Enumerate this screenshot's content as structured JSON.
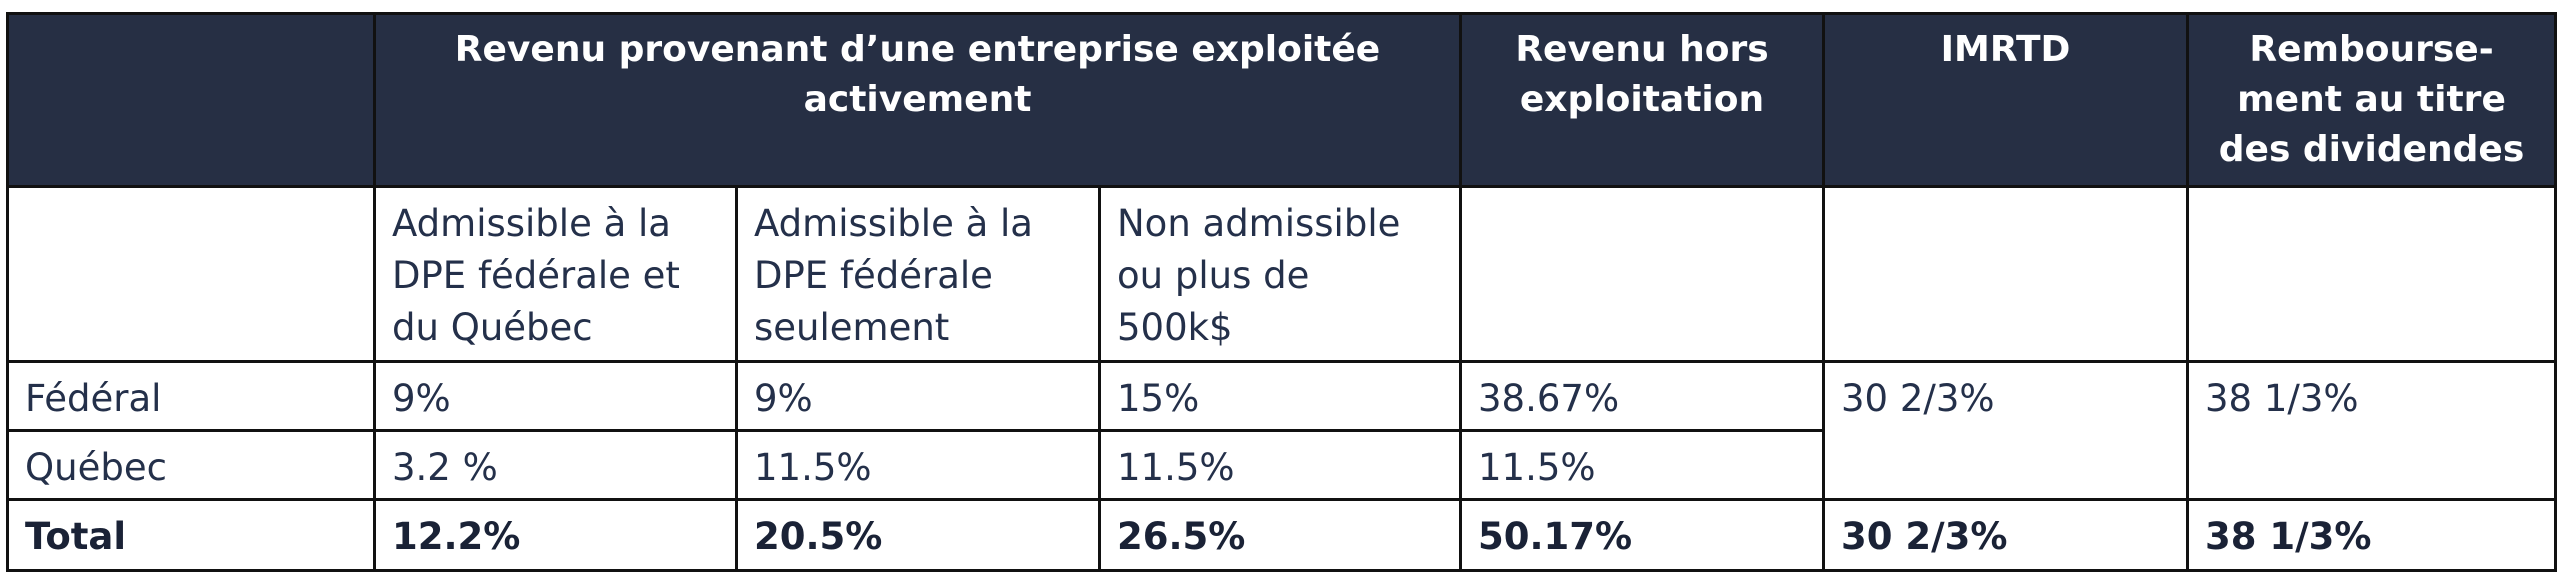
{
  "header": {
    "group_active": "Revenu provenant d’une entreprise exploitée\nactivement",
    "non_exploitation": "Revenu hors\nexploitation",
    "imrtd": "IMRTD",
    "remboursement": "Rembourse-\nment au titre\ndes dividendes"
  },
  "subheaders": [
    "Admissible à la\nDPE fédérale et\ndu Québec",
    "Admissible à la\nDPE fédérale\nseulement",
    "Non admissible\nou plus de\n500k$"
  ],
  "rows": {
    "federal": {
      "label": "Fédéral",
      "dpe_fed_qc": "9%",
      "dpe_fed_only": "9%",
      "non_admissible": "15%",
      "hors_exploitation": "38.67%",
      "imrtd": "30 2/3%",
      "remboursement": "38 1/3%"
    },
    "quebec": {
      "label": "Québec",
      "dpe_fed_qc": "3.2 %",
      "dpe_fed_only": "11.5%",
      "non_admissible": "11.5%",
      "hors_exploitation": "11.5%"
    },
    "total": {
      "label": "Total",
      "dpe_fed_qc": "12.2%",
      "dpe_fed_only": "20.5%",
      "non_admissible": "26.5%",
      "hors_exploitation": "50.17%",
      "imrtd": "30 2/3%",
      "remboursement": "38 1/3%"
    }
  }
}
